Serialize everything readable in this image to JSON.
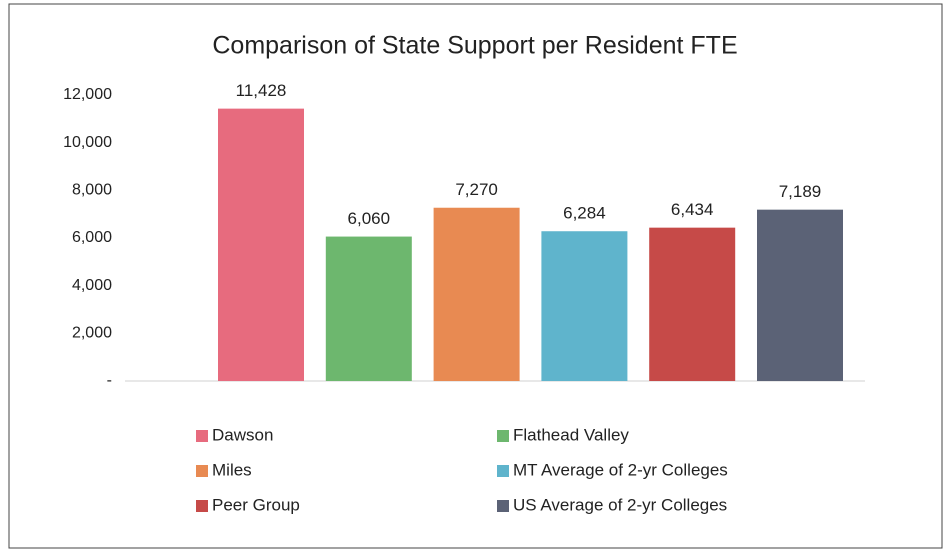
{
  "chart_data": {
    "type": "bar",
    "title": "Comparison of State Support per Resident FTE",
    "series": [
      {
        "name": "Dawson",
        "color": "#e76b7e",
        "values": [
          11428
        ],
        "value_labels": [
          "11,428"
        ]
      },
      {
        "name": "Flathead Valley",
        "color": "#6db76e",
        "values": [
          6060
        ],
        "value_labels": [
          "6,060"
        ]
      },
      {
        "name": "Miles",
        "color": "#e88a52",
        "values": [
          7270
        ],
        "value_labels": [
          "7,270"
        ]
      },
      {
        "name": "MT Average of 2-yr Colleges",
        "color": "#5fb4cc",
        "values": [
          6284
        ],
        "value_labels": [
          "6,284"
        ]
      },
      {
        "name": "Peer Group",
        "color": "#c64a48",
        "values": [
          6434
        ],
        "value_labels": [
          "6,434"
        ]
      },
      {
        "name": "US Average of 2-yr Colleges",
        "color": "#5b6276",
        "values": [
          7189
        ],
        "value_labels": [
          "7,189"
        ]
      }
    ],
    "ylim": [
      0,
      12000
    ],
    "yticks": [
      {
        "value": 0,
        "label": "-"
      },
      {
        "value": 2000,
        "label": "2,000"
      },
      {
        "value": 4000,
        "label": "4,000"
      },
      {
        "value": 6000,
        "label": "6,000"
      },
      {
        "value": 8000,
        "label": "8,000"
      },
      {
        "value": 10000,
        "label": "10,000"
      },
      {
        "value": 12000,
        "label": "12,000"
      }
    ],
    "legend": "bottom"
  }
}
